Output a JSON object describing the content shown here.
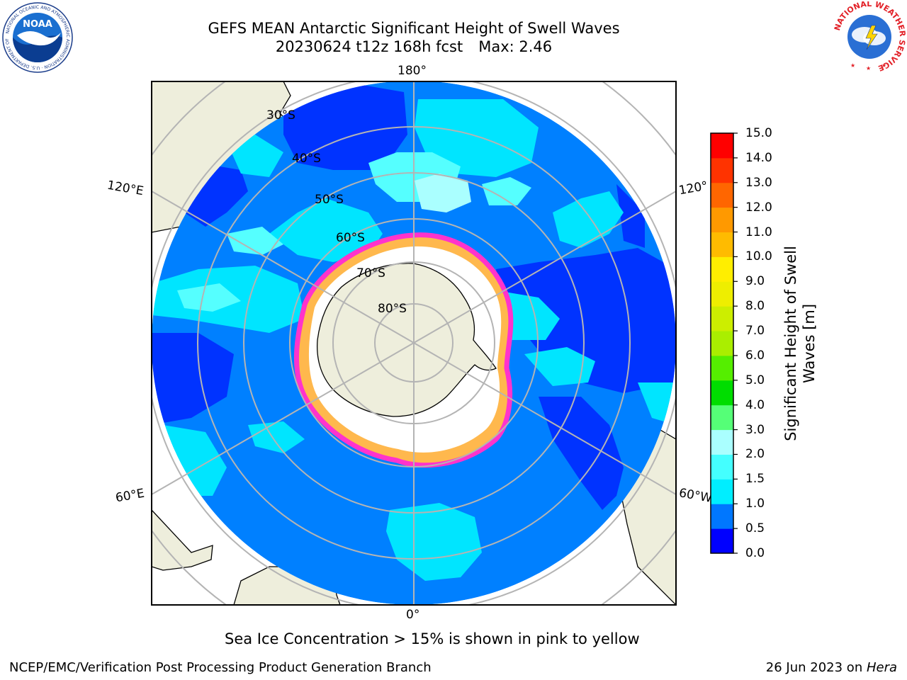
{
  "header": {
    "title_line1": "GEFS MEAN Antarctic Significant Height of Swell Waves",
    "title_date_run": "20230624 t12z 168h fcst",
    "title_max": "Max: 2.46"
  },
  "logos": {
    "noaa_text": "NOAA",
    "noaa_ring_text": "NATIONAL OCEANIC AND ATMOSPHERIC ADMINISTRATION · U.S. DEPARTMENT OF COMMERCE",
    "nws_ring_text": "NATIONAL WEATHER SERVICE"
  },
  "map": {
    "projection": "south-polar-stereographic",
    "longitude_labels": {
      "top": "180°",
      "upper_left": "120°E",
      "upper_right": "120°",
      "lower_left": "60°E",
      "lower_right": "60°W",
      "bottom": "0°"
    },
    "latitude_labels": [
      "30°S",
      "40°S",
      "50°S",
      "60°S",
      "70°S",
      "80°S"
    ],
    "colors": {
      "land": "#eeeedc",
      "ocean_low": "#0033ff",
      "ocean_mid": "#0080ff",
      "ocean_high": "#00e5ff",
      "ocean_higher": "#55ffff",
      "ice_pink": "#ff33cc",
      "ice_yellow": "#ffcc33",
      "grid": "#b4b4b4"
    }
  },
  "colorbar": {
    "title_line1": "Significant Height of Swell",
    "title_line2": "Waves [m]",
    "ticks": [
      "0.0",
      "0.5",
      "1.0",
      "1.5",
      "2.0",
      "3.0",
      "4.0",
      "5.0",
      "6.0",
      "7.0",
      "8.0",
      "9.0",
      "10.0",
      "11.0",
      "12.0",
      "13.0",
      "14.0",
      "15.0"
    ],
    "colors": [
      "#0000ff",
      "#0077ff",
      "#00eeff",
      "#44ffff",
      "#aaffff",
      "#55ff77",
      "#00dd00",
      "#55ee00",
      "#aaee00",
      "#ccee00",
      "#eeee00",
      "#ffee00",
      "#ffbb00",
      "#ff9900",
      "#ff6600",
      "#ff3300",
      "#ff0000"
    ]
  },
  "caption": "Sea Ice Concentration > 15% is shown in pink to yellow",
  "footer": {
    "left": "NCEP/EMC/Verification Post Processing Product Generation Branch",
    "right_prefix": "26 Jun 2023 on ",
    "right_host": "Hera"
  }
}
